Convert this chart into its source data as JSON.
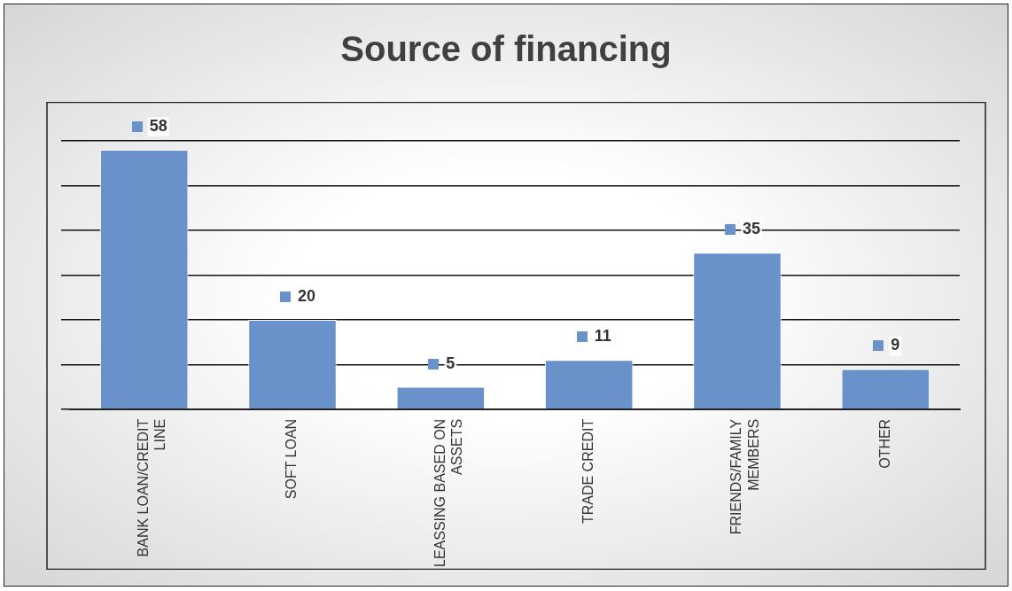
{
  "chart_data": {
    "type": "bar",
    "title": "Source of financing",
    "categories": [
      "BANK LOAN/CREDIT LINE",
      "SOFT LOAN",
      "LEASSING BASED ON ASSETS",
      "TRADE CREDIT",
      "FRIENDS/FAMILY MEMBERS",
      "OTHER"
    ],
    "values": [
      58,
      20,
      5,
      11,
      35,
      9
    ],
    "color": "#6892c9",
    "grid": "y",
    "tick_labels": "x",
    "data_labels": true,
    "legend": false
  }
}
